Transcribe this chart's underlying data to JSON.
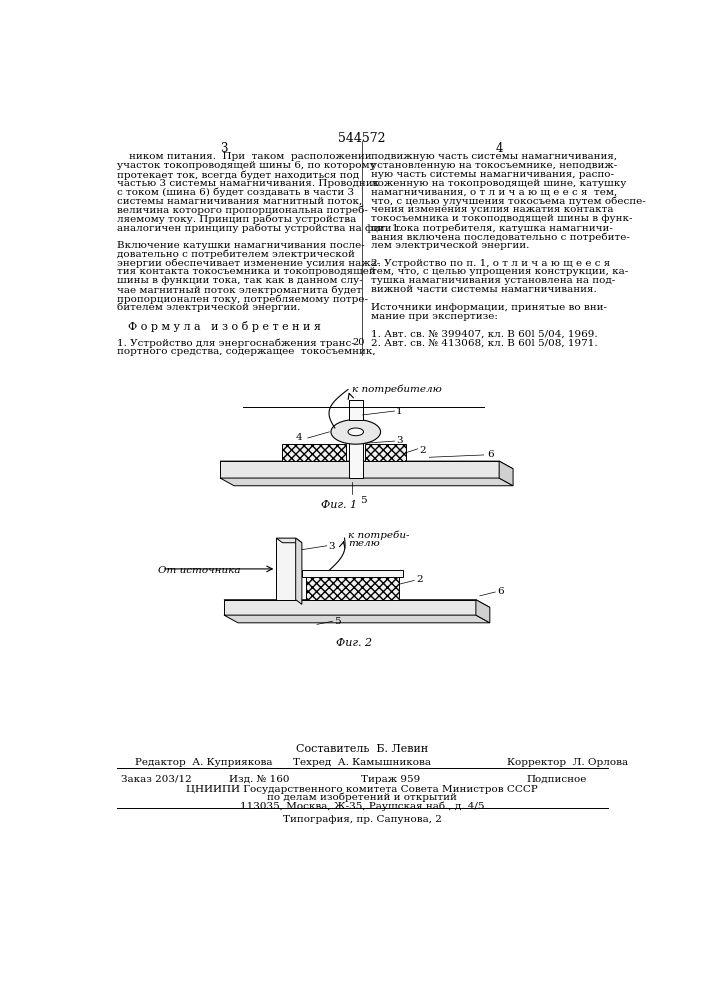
{
  "bg_color": "#ffffff",
  "page_number": "544572",
  "col_left_num": "3",
  "col_right_num": "4",
  "left_col_text": [
    "ником питания.  При  таком  расположении",
    "участок токопроводящей шины 6, по которому",
    "протекает ток, всегда будет находиться под",
    "частью 3 системы намагничивания. Проводник",
    "с током (шина 6) будет создавать в части 3",
    "системы намагничивания магнитный поток,",
    "величина которого пропорциональна потреб-",
    "ляемому току. Принцип работы устройства",
    "аналогичен принципу работы устройства на фиг. 1.",
    "",
    "Включение катушки намагничивания после-",
    "довательно с потребителем электрической",
    "энергии обеспечивает изменение усилия нажа-",
    "тия контакта токосъемника и токопроводящей",
    "шины в функции тока, так как в данном слу-",
    "чае магнитный поток электромагнита будет",
    "пропорционален току, потребляемому потре-",
    "бителем электрической энергии.",
    "",
    "Ф о р м у л а   и з о б р е т е н и я",
    "",
    "1. Устройство для энергоснабжения транс-",
    "портного средства, содержащее  токосъемник,"
  ],
  "right_col_text": [
    "подвижную часть системы намагничивания,",
    "установленную на токосъемнике, неподвиж-",
    "ную часть системы намагничивания, распо-",
    "ложенную на токопроводящей шине, катушку",
    "намагничивания, о т л и ч а ю щ е е с я  тем,",
    "что, с целью улучшения токосъема путем обеспе-",
    "чения изменения усилия нажатия контакта",
    "токосъемника и токоподводящей шины в функ-",
    "ции тока потребителя, катушка намагничи-",
    "вания включена последовательно с потребите-",
    "лем электрической энергии.",
    "",
    "2. Устройство по п. 1, о т л и ч а ю щ е е с я",
    "тем, что, с целью упрощения конструкции, ка-",
    "тушка намагничивания установлена на под-",
    "вижной части системы намагничивания.",
    "",
    "Источники информации, принятые во вни-",
    "мание при экспертизе:",
    "",
    "1. Авт. св. № 399407, кл. В 60l 5/04, 1969.",
    "2. Авт. св. № 413068, кл. В 60l 5/08, 1971."
  ],
  "footer_composer": "Составитель  Б. Левин",
  "footer_editor": "Редактор  А. Куприякова",
  "footer_tech": "Техред  А. Камышникова",
  "footer_corrector": "Корректор  Л. Орлова",
  "footer_order": "Заказ 203/12",
  "footer_izd": "Изд. № 160",
  "footer_tirazh": "Тираж 959",
  "footer_podpisnoe": "Подписное",
  "footer_tsniip1": "ЦНИИПИ Государственного комитета Совета Министров СССР",
  "footer_tsniip2": "по делам изобретений и открытий",
  "footer_tsniip3": "113035, Москва, Ж-35, Раушская наб., д. 4/5",
  "footer_tipografia": "Типография, пр. Сапунова, 2"
}
